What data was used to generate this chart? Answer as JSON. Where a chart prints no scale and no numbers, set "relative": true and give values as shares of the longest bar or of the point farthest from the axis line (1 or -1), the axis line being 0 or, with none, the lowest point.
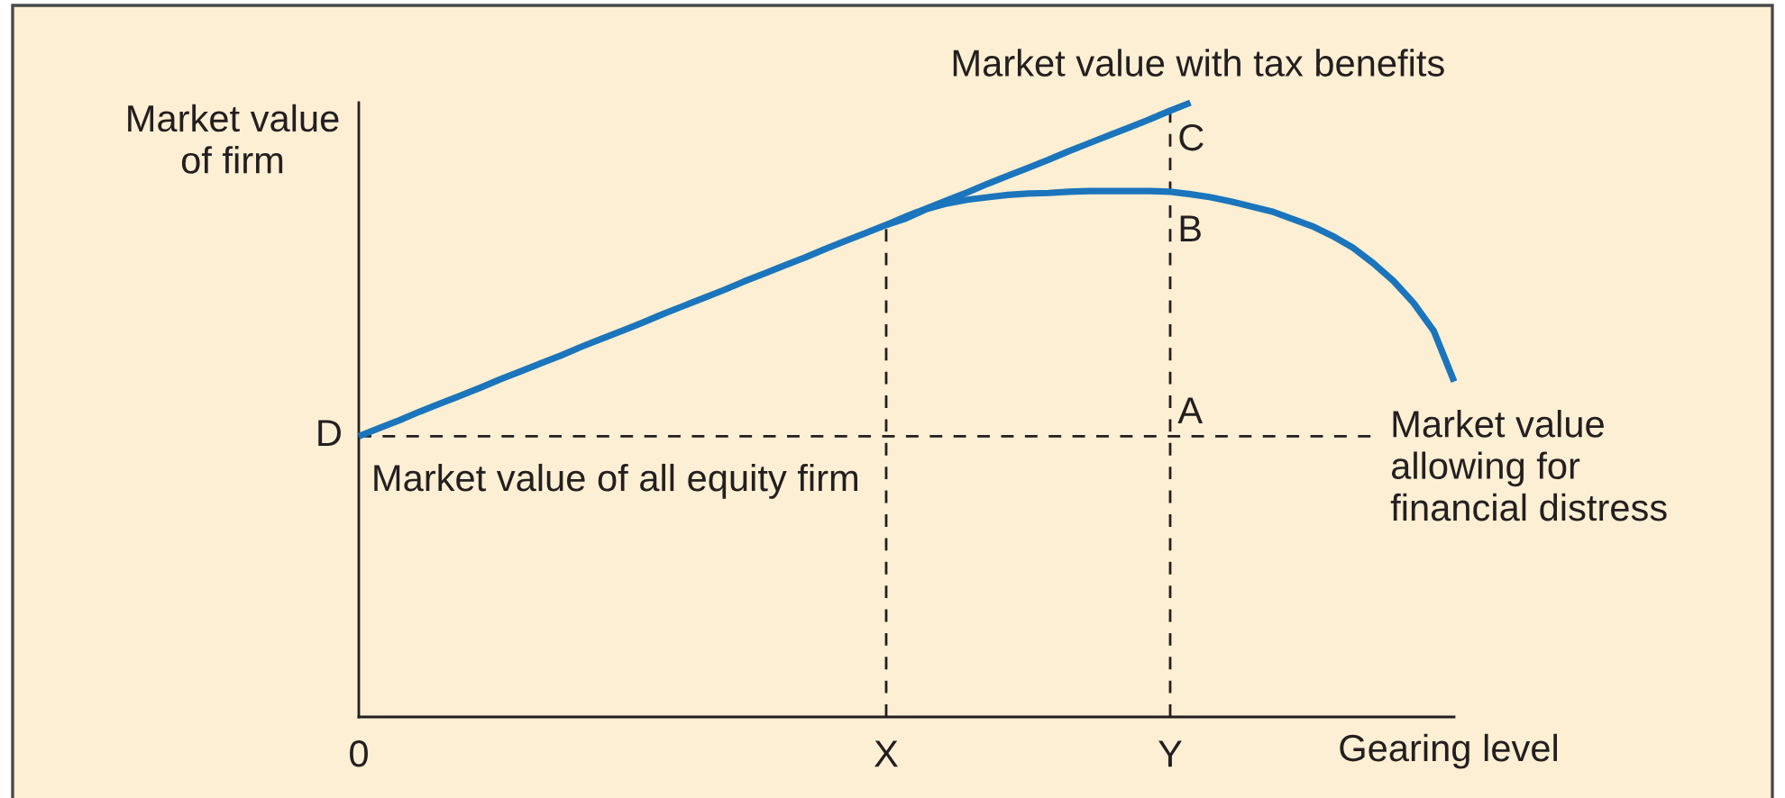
{
  "chart_data": {
    "type": "line",
    "relative": true,
    "ylabel": "Market value\nof firm",
    "xlabel": "Gearing level",
    "categories": [
      "0",
      null,
      null,
      null,
      null,
      null,
      null,
      null,
      null,
      null,
      null,
      null,
      null,
      null,
      null,
      null,
      null,
      null,
      null,
      null,
      null,
      null,
      null,
      null,
      null,
      null,
      "X",
      null,
      null,
      null,
      null,
      null,
      null,
      null,
      null,
      null,
      null,
      null,
      null,
      null,
      "Y",
      null,
      null,
      null,
      null,
      null,
      null,
      null,
      null,
      null,
      null,
      null,
      null,
      null,
      null
    ],
    "series": [
      {
        "name": "Market value with tax benefits",
        "color": "#1a75bc",
        "values": [
          0.457,
          0.47,
          0.483,
          0.497,
          0.51,
          0.523,
          0.536,
          0.55,
          0.563,
          0.576,
          0.589,
          0.603,
          0.616,
          0.629,
          0.642,
          0.656,
          0.669,
          0.682,
          0.695,
          0.709,
          0.722,
          0.735,
          0.748,
          0.762,
          0.775,
          0.788,
          0.801,
          0.815,
          0.828,
          0.841,
          0.854,
          0.868,
          0.881,
          0.894,
          0.907,
          0.921,
          0.934,
          0.947,
          0.96,
          0.973,
          0.987,
          1,
          null,
          null,
          null,
          null,
          null,
          null,
          null,
          null,
          null,
          null,
          null,
          null,
          null
        ]
      },
      {
        "name": "Market value\nallowing for\nfinancial distress",
        "color": "#1a75bc",
        "values": [
          null,
          null,
          null,
          null,
          null,
          null,
          null,
          null,
          null,
          null,
          null,
          null,
          null,
          null,
          null,
          null,
          null,
          null,
          null,
          null,
          null,
          null,
          null,
          null,
          null,
          null,
          0.801,
          0.812,
          0.827,
          0.836,
          0.842,
          0.846,
          0.85,
          0.852,
          0.853,
          0.855,
          0.856,
          0.856,
          0.856,
          0.856,
          0.855,
          0.851,
          0.846,
          0.839,
          0.831,
          0.823,
          0.811,
          0.799,
          0.783,
          0.764,
          0.739,
          0.71,
          0.674,
          0.628,
          0.546
        ]
      },
      {
        "color": "#231f20",
        "line_style": "dashed",
        "values": [
          0.457,
          0.457,
          0.457,
          0.457,
          0.457,
          0.457,
          0.457,
          0.457,
          0.457,
          0.457,
          0.457,
          0.457,
          0.457,
          0.457,
          0.457,
          0.457,
          0.457,
          0.457,
          0.457,
          0.457,
          0.457,
          0.457,
          0.457,
          0.457,
          0.457,
          0.457,
          0.457,
          0.457,
          0.457,
          0.457,
          0.457,
          0.457,
          0.457,
          0.457,
          0.457,
          0.457,
          0.457,
          0.457,
          0.457,
          0.457,
          0.457,
          0.457,
          0.457,
          0.457,
          0.457,
          0.457,
          0.457,
          0.457,
          0.457,
          0.457,
          0.457,
          null,
          null,
          null,
          null
        ]
      }
    ],
    "ref_lines": [
      {
        "axis": "x",
        "value": "X",
        "color": "#231f20",
        "line_style": "dashed"
      },
      {
        "axis": "x",
        "value": "Y",
        "color": "#231f20",
        "line_style": "dashed"
      }
    ],
    "annotations": [
      {
        "text": "D",
        "x": "0",
        "y": 0.457
      },
      {
        "text": "Market value of all equity firm",
        "x": "0",
        "y": 0.457
      },
      {
        "text": "A",
        "x": "Y",
        "y": 0.457
      },
      {
        "text": "B",
        "x": "Y",
        "y": 0.855
      },
      {
        "text": "C",
        "x": "Y",
        "y": 0.987
      }
    ]
  }
}
